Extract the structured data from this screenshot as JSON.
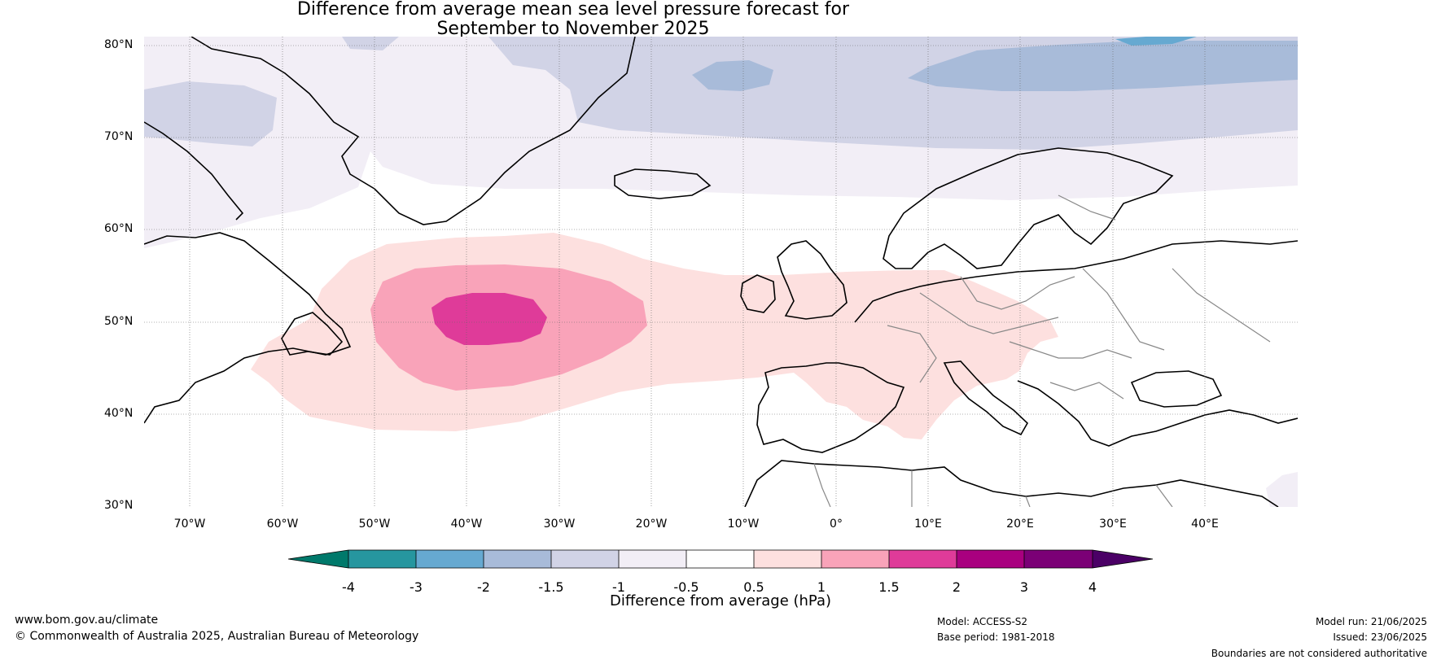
{
  "title_line1": "Difference from average mean sea level pressure forecast for",
  "title_line2": "September to November 2025",
  "latitude_labels": [
    "80°N",
    "70°N",
    "60°N",
    "50°N",
    "40°N",
    "30°N"
  ],
  "longitude_labels": [
    "70°W",
    "60°W",
    "50°W",
    "40°W",
    "30°W",
    "20°W",
    "10°W",
    "0°",
    "10°E",
    "20°E",
    "30°E",
    "40°E"
  ],
  "legend": {
    "title": "Difference from average (hPa)",
    "tick_labels": [
      "-4",
      "-3",
      "-2",
      "-1.5",
      "-1",
      "-0.5",
      "0.5",
      "1",
      "1.5",
      "2",
      "3",
      "4"
    ],
    "colors": [
      "#00796b",
      "#26969f",
      "#66a9d1",
      "#a8bbd9",
      "#d1d3e6",
      "#f2eef6",
      "#ffffff",
      "#fde0df",
      "#f9a3b9",
      "#df3b99",
      "#a9007f",
      "#7b0076",
      "#4b0066"
    ]
  },
  "footer": {
    "website": "www.bom.gov.au/climate",
    "copyright": "© Commonwealth of Australia 2025, Australian Bureau of Meteorology",
    "model": "Model: ACCESS-S2",
    "base_period": "Base period: 1981-2018",
    "model_run": "Model run: 21/06/2025",
    "issued": "Issued: 23/06/2025",
    "disclaimer": "Boundaries are not considered authoritative"
  }
}
